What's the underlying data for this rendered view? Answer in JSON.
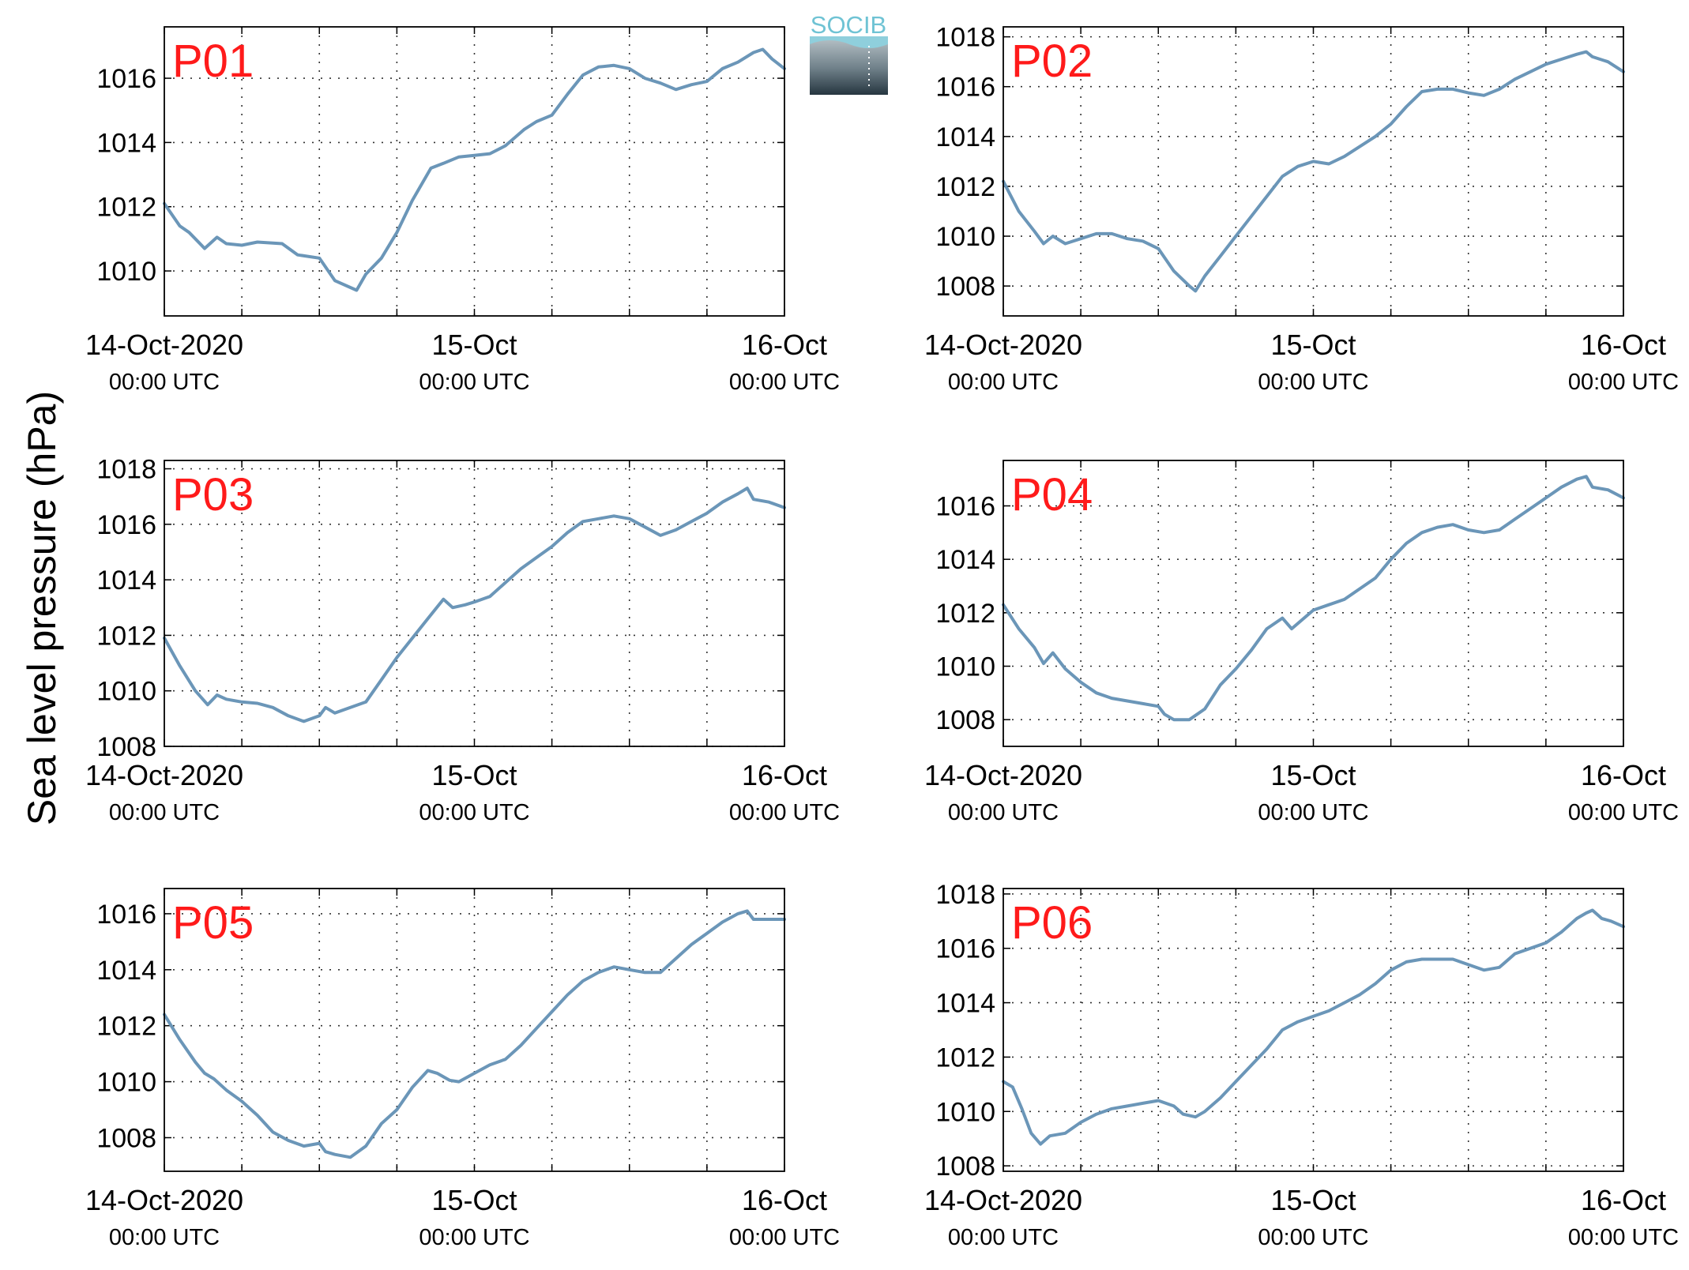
{
  "figure": {
    "ylabel": "Sea level pressure (hPa)",
    "logo_text": "SOCIB",
    "line_color": "#6b96b8",
    "panel_label_color": "#ff1a1a",
    "x_ticks": [
      {
        "day": 0,
        "line1": "14-Oct-2020",
        "line2": "00:00 UTC"
      },
      {
        "day": 1,
        "line1": "15-Oct",
        "line2": "00:00 UTC"
      },
      {
        "day": 2,
        "line1": "16-Oct",
        "line2": "00:00 UTC"
      }
    ]
  },
  "chart_data": [
    {
      "type": "line",
      "label": "P01",
      "ylim": [
        1008.6,
        1017.6
      ],
      "yticks": [
        1010,
        1012,
        1014,
        1016
      ],
      "xlim_days": [
        0,
        2
      ],
      "grid": true,
      "points": [
        [
          0,
          1012.1
        ],
        [
          0.05,
          1011.4
        ],
        [
          0.08,
          1011.2
        ],
        [
          0.12,
          1010.8
        ],
        [
          0.13,
          1010.7
        ],
        [
          0.17,
          1011.05
        ],
        [
          0.2,
          1010.85
        ],
        [
          0.25,
          1010.8
        ],
        [
          0.3,
          1010.9
        ],
        [
          0.38,
          1010.85
        ],
        [
          0.43,
          1010.5
        ],
        [
          0.5,
          1010.4
        ],
        [
          0.55,
          1009.7
        ],
        [
          0.62,
          1009.4
        ],
        [
          0.65,
          1009.9
        ],
        [
          0.7,
          1010.4
        ],
        [
          0.75,
          1011.2
        ],
        [
          0.8,
          1012.2
        ],
        [
          0.86,
          1013.2
        ],
        [
          0.9,
          1013.35
        ],
        [
          0.95,
          1013.55
        ],
        [
          1.0,
          1013.6
        ],
        [
          1.05,
          1013.65
        ],
        [
          1.1,
          1013.9
        ],
        [
          1.16,
          1014.4
        ],
        [
          1.2,
          1014.65
        ],
        [
          1.25,
          1014.85
        ],
        [
          1.3,
          1015.5
        ],
        [
          1.35,
          1016.1
        ],
        [
          1.4,
          1016.35
        ],
        [
          1.45,
          1016.4
        ],
        [
          1.5,
          1016.3
        ],
        [
          1.55,
          1016.0
        ],
        [
          1.6,
          1015.85
        ],
        [
          1.65,
          1015.65
        ],
        [
          1.7,
          1015.8
        ],
        [
          1.75,
          1015.9
        ],
        [
          1.8,
          1016.3
        ],
        [
          1.85,
          1016.5
        ],
        [
          1.9,
          1016.8
        ],
        [
          1.93,
          1016.9
        ],
        [
          1.96,
          1016.6
        ],
        [
          2.0,
          1016.3
        ]
      ]
    },
    {
      "type": "line",
      "label": "P02",
      "ylim": [
        1006.8,
        1018.4
      ],
      "yticks": [
        1008,
        1010,
        1012,
        1014,
        1016,
        1018
      ],
      "xlim_days": [
        0,
        2
      ],
      "grid": true,
      "points": [
        [
          0,
          1012.2
        ],
        [
          0.05,
          1011.0
        ],
        [
          0.1,
          1010.2
        ],
        [
          0.13,
          1009.7
        ],
        [
          0.16,
          1010.0
        ],
        [
          0.2,
          1009.7
        ],
        [
          0.25,
          1009.9
        ],
        [
          0.3,
          1010.1
        ],
        [
          0.35,
          1010.1
        ],
        [
          0.4,
          1009.9
        ],
        [
          0.45,
          1009.8
        ],
        [
          0.5,
          1009.5
        ],
        [
          0.55,
          1008.6
        ],
        [
          0.6,
          1008.0
        ],
        [
          0.62,
          1007.8
        ],
        [
          0.65,
          1008.4
        ],
        [
          0.7,
          1009.2
        ],
        [
          0.75,
          1010.0
        ],
        [
          0.8,
          1010.8
        ],
        [
          0.85,
          1011.6
        ],
        [
          0.9,
          1012.4
        ],
        [
          0.95,
          1012.8
        ],
        [
          1.0,
          1013.0
        ],
        [
          1.05,
          1012.9
        ],
        [
          1.1,
          1013.2
        ],
        [
          1.15,
          1013.6
        ],
        [
          1.2,
          1014.0
        ],
        [
          1.25,
          1014.5
        ],
        [
          1.3,
          1015.2
        ],
        [
          1.35,
          1015.8
        ],
        [
          1.4,
          1015.9
        ],
        [
          1.45,
          1015.9
        ],
        [
          1.5,
          1015.75
        ],
        [
          1.55,
          1015.65
        ],
        [
          1.6,
          1015.9
        ],
        [
          1.65,
          1016.3
        ],
        [
          1.7,
          1016.6
        ],
        [
          1.75,
          1016.9
        ],
        [
          1.8,
          1017.1
        ],
        [
          1.85,
          1017.3
        ],
        [
          1.88,
          1017.4
        ],
        [
          1.9,
          1017.2
        ],
        [
          1.95,
          1017.0
        ],
        [
          2.0,
          1016.6
        ]
      ]
    },
    {
      "type": "line",
      "label": "P03",
      "ylim": [
        1008.0,
        1018.3
      ],
      "yticks": [
        1008,
        1010,
        1012,
        1014,
        1016,
        1018
      ],
      "xlim_days": [
        0,
        2
      ],
      "grid": true,
      "points": [
        [
          0,
          1011.9
        ],
        [
          0.05,
          1010.9
        ],
        [
          0.1,
          1010.0
        ],
        [
          0.14,
          1009.5
        ],
        [
          0.17,
          1009.85
        ],
        [
          0.2,
          1009.7
        ],
        [
          0.25,
          1009.6
        ],
        [
          0.3,
          1009.55
        ],
        [
          0.35,
          1009.4
        ],
        [
          0.4,
          1009.1
        ],
        [
          0.45,
          1008.9
        ],
        [
          0.5,
          1009.1
        ],
        [
          0.52,
          1009.4
        ],
        [
          0.55,
          1009.2
        ],
        [
          0.6,
          1009.4
        ],
        [
          0.65,
          1009.6
        ],
        [
          0.7,
          1010.4
        ],
        [
          0.75,
          1011.2
        ],
        [
          0.8,
          1011.9
        ],
        [
          0.85,
          1012.6
        ],
        [
          0.9,
          1013.3
        ],
        [
          0.93,
          1013.0
        ],
        [
          0.97,
          1013.1
        ],
        [
          1.0,
          1013.2
        ],
        [
          1.05,
          1013.4
        ],
        [
          1.1,
          1013.9
        ],
        [
          1.15,
          1014.4
        ],
        [
          1.2,
          1014.8
        ],
        [
          1.25,
          1015.2
        ],
        [
          1.3,
          1015.7
        ],
        [
          1.35,
          1016.1
        ],
        [
          1.4,
          1016.2
        ],
        [
          1.45,
          1016.3
        ],
        [
          1.5,
          1016.2
        ],
        [
          1.55,
          1015.9
        ],
        [
          1.6,
          1015.6
        ],
        [
          1.65,
          1015.8
        ],
        [
          1.7,
          1016.1
        ],
        [
          1.75,
          1016.4
        ],
        [
          1.8,
          1016.8
        ],
        [
          1.85,
          1017.1
        ],
        [
          1.88,
          1017.3
        ],
        [
          1.9,
          1016.9
        ],
        [
          1.95,
          1016.8
        ],
        [
          2.0,
          1016.6
        ]
      ]
    },
    {
      "type": "line",
      "label": "P04",
      "ylim": [
        1007.0,
        1017.7
      ],
      "yticks": [
        1008,
        1010,
        1012,
        1014,
        1016
      ],
      "xlim_days": [
        0,
        2
      ],
      "grid": true,
      "points": [
        [
          0,
          1012.3
        ],
        [
          0.05,
          1011.4
        ],
        [
          0.1,
          1010.7
        ],
        [
          0.13,
          1010.1
        ],
        [
          0.16,
          1010.5
        ],
        [
          0.2,
          1009.9
        ],
        [
          0.25,
          1009.4
        ],
        [
          0.3,
          1009.0
        ],
        [
          0.35,
          1008.8
        ],
        [
          0.4,
          1008.7
        ],
        [
          0.45,
          1008.6
        ],
        [
          0.5,
          1008.5
        ],
        [
          0.52,
          1008.2
        ],
        [
          0.55,
          1008.0
        ],
        [
          0.6,
          1008.0
        ],
        [
          0.65,
          1008.4
        ],
        [
          0.7,
          1009.3
        ],
        [
          0.75,
          1009.9
        ],
        [
          0.8,
          1010.6
        ],
        [
          0.85,
          1011.4
        ],
        [
          0.9,
          1011.8
        ],
        [
          0.93,
          1011.4
        ],
        [
          1.0,
          1012.1
        ],
        [
          1.05,
          1012.3
        ],
        [
          1.1,
          1012.5
        ],
        [
          1.15,
          1012.9
        ],
        [
          1.2,
          1013.3
        ],
        [
          1.25,
          1014.0
        ],
        [
          1.3,
          1014.6
        ],
        [
          1.35,
          1015.0
        ],
        [
          1.4,
          1015.2
        ],
        [
          1.45,
          1015.3
        ],
        [
          1.5,
          1015.1
        ],
        [
          1.55,
          1015.0
        ],
        [
          1.6,
          1015.1
        ],
        [
          1.65,
          1015.5
        ],
        [
          1.7,
          1015.9
        ],
        [
          1.75,
          1016.3
        ],
        [
          1.8,
          1016.7
        ],
        [
          1.85,
          1017.0
        ],
        [
          1.88,
          1017.1
        ],
        [
          1.9,
          1016.7
        ],
        [
          1.95,
          1016.6
        ],
        [
          2.0,
          1016.3
        ]
      ]
    },
    {
      "type": "line",
      "label": "P05",
      "ylim": [
        1006.8,
        1016.9
      ],
      "yticks": [
        1008,
        1010,
        1012,
        1014,
        1016
      ],
      "xlim_days": [
        0,
        2
      ],
      "grid": true,
      "points": [
        [
          0,
          1012.4
        ],
        [
          0.05,
          1011.5
        ],
        [
          0.1,
          1010.7
        ],
        [
          0.13,
          1010.3
        ],
        [
          0.16,
          1010.1
        ],
        [
          0.2,
          1009.7
        ],
        [
          0.25,
          1009.3
        ],
        [
          0.3,
          1008.8
        ],
        [
          0.35,
          1008.2
        ],
        [
          0.4,
          1007.9
        ],
        [
          0.45,
          1007.7
        ],
        [
          0.5,
          1007.8
        ],
        [
          0.52,
          1007.5
        ],
        [
          0.55,
          1007.4
        ],
        [
          0.6,
          1007.3
        ],
        [
          0.65,
          1007.7
        ],
        [
          0.7,
          1008.5
        ],
        [
          0.75,
          1009.0
        ],
        [
          0.8,
          1009.8
        ],
        [
          0.85,
          1010.4
        ],
        [
          0.88,
          1010.3
        ],
        [
          0.92,
          1010.05
        ],
        [
          0.95,
          1010.0
        ],
        [
          1.0,
          1010.3
        ],
        [
          1.05,
          1010.6
        ],
        [
          1.1,
          1010.8
        ],
        [
          1.15,
          1011.3
        ],
        [
          1.2,
          1011.9
        ],
        [
          1.25,
          1012.5
        ],
        [
          1.3,
          1013.1
        ],
        [
          1.35,
          1013.6
        ],
        [
          1.4,
          1013.9
        ],
        [
          1.45,
          1014.1
        ],
        [
          1.5,
          1014.0
        ],
        [
          1.55,
          1013.9
        ],
        [
          1.6,
          1013.9
        ],
        [
          1.65,
          1014.4
        ],
        [
          1.7,
          1014.9
        ],
        [
          1.75,
          1015.3
        ],
        [
          1.8,
          1015.7
        ],
        [
          1.85,
          1016.0
        ],
        [
          1.88,
          1016.1
        ],
        [
          1.9,
          1015.8
        ],
        [
          1.95,
          1015.8
        ],
        [
          2.0,
          1015.8
        ]
      ]
    },
    {
      "type": "line",
      "label": "P06",
      "ylim": [
        1007.8,
        1018.2
      ],
      "yticks": [
        1008,
        1010,
        1012,
        1014,
        1016,
        1018
      ],
      "xlim_days": [
        0,
        2
      ],
      "grid": true,
      "points": [
        [
          0,
          1011.1
        ],
        [
          0.03,
          1010.9
        ],
        [
          0.06,
          1010.1
        ],
        [
          0.09,
          1009.2
        ],
        [
          0.12,
          1008.8
        ],
        [
          0.15,
          1009.1
        ],
        [
          0.2,
          1009.2
        ],
        [
          0.25,
          1009.6
        ],
        [
          0.3,
          1009.9
        ],
        [
          0.35,
          1010.1
        ],
        [
          0.4,
          1010.2
        ],
        [
          0.45,
          1010.3
        ],
        [
          0.5,
          1010.4
        ],
        [
          0.55,
          1010.2
        ],
        [
          0.58,
          1009.9
        ],
        [
          0.62,
          1009.8
        ],
        [
          0.65,
          1010.0
        ],
        [
          0.7,
          1010.5
        ],
        [
          0.75,
          1011.1
        ],
        [
          0.8,
          1011.7
        ],
        [
          0.85,
          1012.3
        ],
        [
          0.9,
          1013.0
        ],
        [
          0.95,
          1013.3
        ],
        [
          1.0,
          1013.5
        ],
        [
          1.05,
          1013.7
        ],
        [
          1.1,
          1014.0
        ],
        [
          1.15,
          1014.3
        ],
        [
          1.2,
          1014.7
        ],
        [
          1.25,
          1015.2
        ],
        [
          1.3,
          1015.5
        ],
        [
          1.35,
          1015.6
        ],
        [
          1.4,
          1015.6
        ],
        [
          1.45,
          1015.6
        ],
        [
          1.5,
          1015.4
        ],
        [
          1.55,
          1015.2
        ],
        [
          1.6,
          1015.3
        ],
        [
          1.65,
          1015.8
        ],
        [
          1.7,
          1016.0
        ],
        [
          1.75,
          1016.2
        ],
        [
          1.8,
          1016.6
        ],
        [
          1.85,
          1017.1
        ],
        [
          1.88,
          1017.3
        ],
        [
          1.9,
          1017.4
        ],
        [
          1.93,
          1017.1
        ],
        [
          1.96,
          1017.0
        ],
        [
          2.0,
          1016.8
        ]
      ]
    }
  ]
}
